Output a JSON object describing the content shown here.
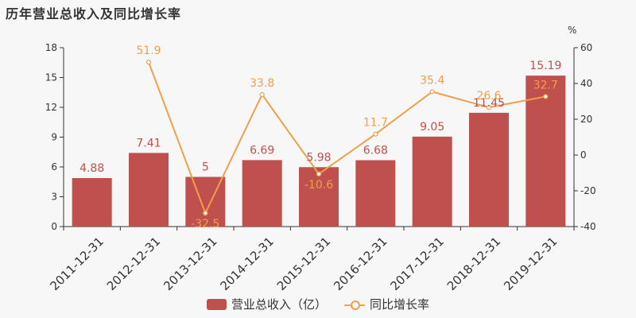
{
  "title": "历年营业总收入及同比增长率",
  "chart_data": {
    "type": "bar",
    "categories": [
      "2011-12-31",
      "2012-12-31",
      "2013-12-31",
      "2014-12-31",
      "2015-12-31",
      "2016-12-31",
      "2017-12-31",
      "2018-12-31",
      "2019-12-31"
    ],
    "series": [
      {
        "name": "营业总收入（亿）",
        "type": "bar",
        "axis": "left",
        "color": "#c0504d",
        "values": [
          4.88,
          7.41,
          5,
          6.69,
          5.98,
          6.68,
          9.05,
          11.45,
          15.19
        ],
        "labels": [
          "4.88",
          "7.41",
          "5",
          "6.69",
          "5.98",
          "6.68",
          "9.05",
          "11.45",
          "15.19"
        ]
      },
      {
        "name": "同比增长率",
        "type": "line",
        "axis": "right",
        "color": "#f0a04b",
        "values": [
          null,
          51.9,
          -32.5,
          33.8,
          -10.6,
          11.7,
          35.4,
          26.6,
          32.7
        ],
        "labels": [
          "",
          "51.9",
          "-32.5",
          "33.8",
          "-10.6",
          "11.7",
          "35.4",
          "26.6",
          "32.7"
        ]
      }
    ],
    "ylim_left": [
      0,
      18
    ],
    "yticks_left": [
      "0",
      "3",
      "6",
      "9",
      "12",
      "15",
      "18"
    ],
    "ylim_right": [
      -40,
      60
    ],
    "yticks_right": [
      "-40",
      "-20",
      "0",
      "20",
      "40",
      "60"
    ],
    "right_unit": "%",
    "grid": false,
    "legend_position": "bottom"
  }
}
